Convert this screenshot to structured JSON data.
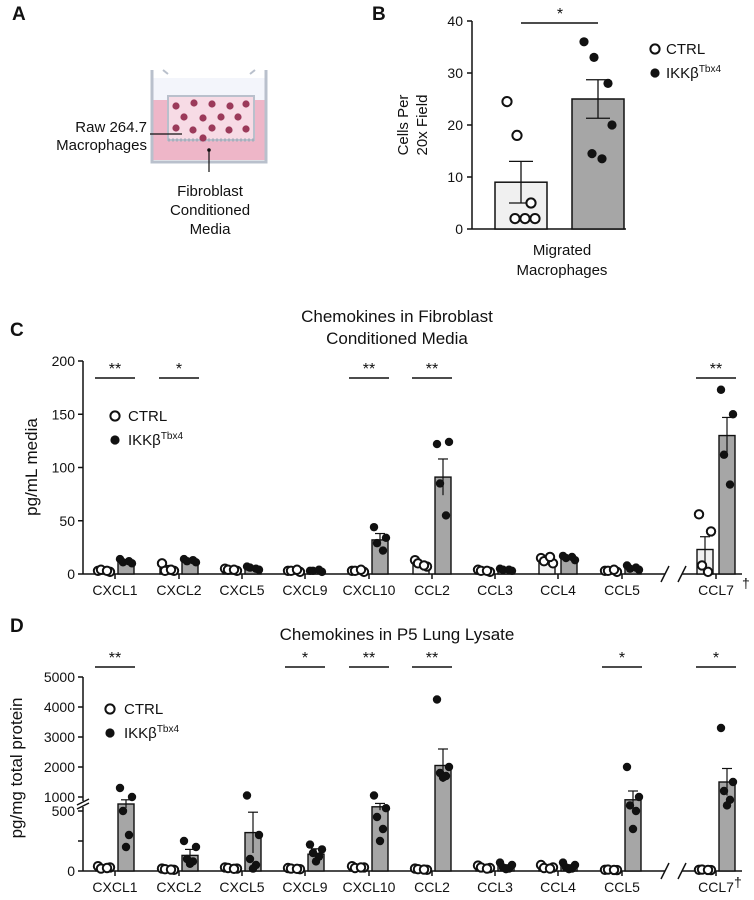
{
  "figure": {
    "panel_labels": [
      "A",
      "B",
      "C",
      "D"
    ],
    "colors": {
      "ctrl_fill": "#f0f0f0",
      "ikk_fill": "#a6a6a6",
      "axis": "#111111",
      "well_pink": "#eeb6c8",
      "cell": "#9b3a5a"
    }
  },
  "panel_a": {
    "label_cells": "Raw 264.7",
    "label_cells_2": "Macrophages",
    "label_media": "Fibroblast",
    "label_media_2": "Conditioned",
    "label_media_3": "Media"
  },
  "legend": {
    "ctrl": "CTRL",
    "ikk_base": "IKKβ",
    "ikk_sup": "Tbx4"
  },
  "chart_data": [
    {
      "id": "B",
      "type": "bar",
      "title": "",
      "ylabel": "Cells Per",
      "ylabel_2": "20x Field",
      "xlabel": "Migrated",
      "xlabel_2": "Macrophages",
      "ylim": [
        0,
        40
      ],
      "yticks": [
        0,
        10,
        20,
        30,
        40
      ],
      "series": [
        {
          "name": "CTRL",
          "mean": 9,
          "sem": 4,
          "points": [
            24.5,
            18,
            5,
            2,
            2,
            2
          ]
        },
        {
          "name": "IKKβTbx4",
          "mean": 25,
          "sem": 3.7,
          "points": [
            36,
            33,
            28,
            20,
            14.5,
            13.5
          ]
        }
      ],
      "significance": [
        "*"
      ]
    },
    {
      "id": "C",
      "type": "bar",
      "title": "Chemokines in Fibroblast",
      "title_2": "Conditioned Media",
      "ylabel": "pg/mL media",
      "ylim": [
        0,
        200
      ],
      "yticks": [
        0,
        50,
        100,
        150,
        200
      ],
      "axis_break_before": "CCL7",
      "dagger": "†",
      "categories": [
        "CXCL1",
        "CXCL2",
        "CXCL5",
        "CXCL9",
        "CXCL10",
        "CCL2",
        "CCL3",
        "CCL4",
        "CCL5",
        "CCL7"
      ],
      "series": [
        {
          "name": "CTRL",
          "values": [
            3,
            5,
            4,
            3,
            3,
            9,
            3,
            13,
            3,
            23
          ],
          "sem": [
            1,
            3,
            1,
            1,
            1,
            3,
            1,
            3,
            1,
            12
          ],
          "points": [
            [
              3,
              2,
              4,
              3
            ],
            [
              10,
              3,
              3,
              4
            ],
            [
              5,
              3,
              4,
              4
            ],
            [
              3,
              2,
              3,
              4
            ],
            [
              3,
              2,
              3,
              4
            ],
            [
              13,
              7,
              10,
              8
            ],
            [
              4,
              2,
              3,
              3
            ],
            [
              15,
              10,
              12,
              16
            ],
            [
              3,
              2,
              3,
              4
            ],
            [
              56,
              40,
              8,
              2
            ]
          ]
        },
        {
          "name": "IKKβTbx4",
          "values": [
            11,
            12,
            5,
            3,
            32,
            91,
            4,
            15,
            5,
            130
          ],
          "sem": [
            2,
            2,
            1,
            1,
            6,
            17,
            1,
            2,
            1,
            17
          ],
          "points": [
            [
              14,
              10,
              11,
              12
            ],
            [
              14,
              11,
              12,
              13
            ],
            [
              7,
              4,
              6,
              5
            ],
            [
              3,
              2,
              3,
              4
            ],
            [
              44,
              34,
              29,
              22
            ],
            [
              122,
              124,
              85,
              55
            ],
            [
              5,
              3,
              4,
              4
            ],
            [
              17,
              13,
              15,
              16
            ],
            [
              8,
              4,
              5,
              6
            ],
            [
              173,
              150,
              112,
              84
            ]
          ]
        }
      ],
      "significance": [
        {
          "category": "CXCL1",
          "mark": "**"
        },
        {
          "category": "CXCL2",
          "mark": "*"
        },
        {
          "category": "CXCL10",
          "mark": "**"
        },
        {
          "category": "CCL2",
          "mark": "**"
        },
        {
          "category": "CCL7",
          "mark": "**"
        }
      ]
    },
    {
      "id": "D",
      "type": "bar",
      "title": "Chemokines in P5 Lung Lysate",
      "ylabel": "pg/mg total protein",
      "ylim": [
        0,
        5000
      ],
      "y_axis_break": [
        500,
        700
      ],
      "yticks_lower": [
        0,
        250,
        500
      ],
      "yticks_upper": [
        1000,
        2000,
        3000,
        4000,
        5000
      ],
      "axis_break_before": "CCL7",
      "dagger": "†",
      "categories": [
        "CXCL1",
        "CXCL2",
        "CXCL5",
        "CXCL9",
        "CXCL10",
        "CCL2",
        "CCL3",
        "CCL4",
        "CCL5",
        "CCL7"
      ],
      "series": [
        {
          "name": "CTRL",
          "values": [
            30,
            15,
            25,
            20,
            30,
            15,
            30,
            30,
            10,
            10
          ],
          "sem": [
            8,
            5,
            8,
            5,
            8,
            5,
            8,
            8,
            3,
            3
          ],
          "points": [
            [
              40,
              30,
              20,
              25
            ],
            [
              20,
              10,
              15,
              12
            ],
            [
              30,
              20,
              25,
              18
            ],
            [
              25,
              15,
              20,
              18
            ],
            [
              40,
              30,
              25,
              30
            ],
            [
              20,
              10,
              15,
              12
            ],
            [
              45,
              25,
              30,
              20
            ],
            [
              50,
              30,
              25,
              20
            ],
            [
              10,
              8,
              12,
              9
            ],
            [
              10,
              8,
              12,
              9
            ]
          ]
        },
        {
          "name": "IKKβTbx4",
          "values": [
            750,
            130,
            320,
            140,
            650,
            2050,
            40,
            40,
            900,
            1500
          ],
          "sem": [
            150,
            50,
            170,
            45,
            120,
            550,
            12,
            12,
            300,
            450
          ],
          "points": [
            [
              1300,
              1000,
              500,
              300,
              200
            ],
            [
              250,
              200,
              100,
              80,
              60
            ],
            [
              1050,
              300,
              100,
              50,
              20
            ],
            [
              220,
              180,
              150,
              120,
              80
            ],
            [
              1050,
              600,
              450,
              350,
              250
            ],
            [
              4250,
              2000,
              1800,
              1700,
              1650
            ],
            [
              70,
              50,
              30,
              20,
              15
            ],
            [
              70,
              50,
              30,
              20,
              15
            ],
            [
              2000,
              1000,
              700,
              500,
              350
            ],
            [
              3300,
              1500,
              1200,
              900,
              700
            ]
          ]
        }
      ],
      "significance": [
        {
          "category": "CXCL1",
          "mark": "**"
        },
        {
          "category": "CXCL9",
          "mark": "*"
        },
        {
          "category": "CXCL10",
          "mark": "**"
        },
        {
          "category": "CCL2",
          "mark": "**"
        },
        {
          "category": "CCL5",
          "mark": "*"
        },
        {
          "category": "CCL7",
          "mark": "*"
        }
      ]
    }
  ]
}
